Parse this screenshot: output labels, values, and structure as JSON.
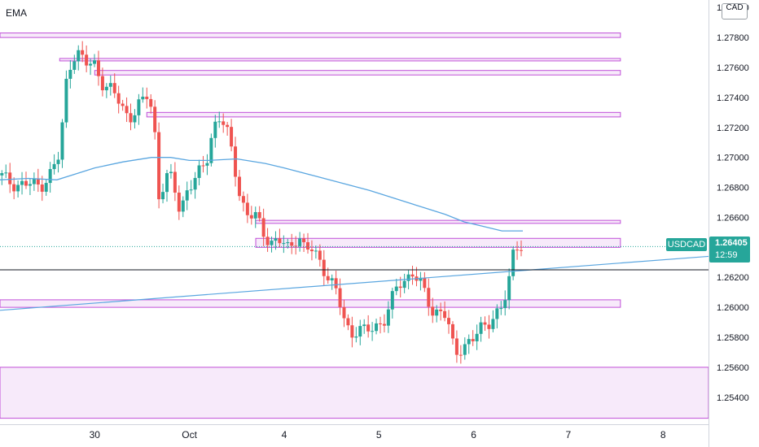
{
  "chart_data": {
    "type": "candlestick",
    "symbol": "USDCAD",
    "indicator": "EMA",
    "currency": "CAD",
    "last_price": "1.26405",
    "countdown": "12:59",
    "y_axis_ticks": [
      1.28,
      1.278,
      1.276,
      1.274,
      1.272,
      1.27,
      1.268,
      1.266,
      1.264,
      1.262,
      1.26,
      1.258,
      1.256,
      1.254
    ],
    "y_axis_tick_labels": [
      "1.28000",
      "1.27800",
      "1.27600",
      "1.27400",
      "1.27200",
      "1.27000",
      "1.26800",
      "1.26600",
      "1.26400",
      "1.26200",
      "1.26000",
      "1.25800",
      "1.25600",
      "1.25400"
    ],
    "ylim": [
      1.2522,
      1.2805
    ],
    "x_axis_labels": [
      "30",
      "Oct",
      "4",
      "5",
      "6",
      "7",
      "8"
    ],
    "x_axis_label_positions": [
      1.0,
      2.0,
      3.0,
      4.0,
      5.0,
      6.0,
      7.0
    ],
    "xlim": [
      0.0,
      7.48
    ],
    "ohlc_anchors": [
      [
        0.0,
        1.2688
      ],
      [
        0.08,
        1.2684
      ],
      [
        0.2,
        1.2682
      ],
      [
        0.3,
        1.2682
      ],
      [
        0.42,
        1.2681
      ],
      [
        0.52,
        1.2688
      ],
      [
        0.62,
        1.27
      ],
      [
        0.66,
        1.2722
      ],
      [
        0.7,
        1.275
      ],
      [
        0.76,
        1.2768
      ],
      [
        0.82,
        1.277
      ],
      [
        0.9,
        1.2762
      ],
      [
        1.0,
        1.2762
      ],
      [
        1.1,
        1.2748
      ],
      [
        1.2,
        1.2743
      ],
      [
        1.32,
        1.273
      ],
      [
        1.4,
        1.2728
      ],
      [
        1.48,
        1.2735
      ],
      [
        1.55,
        1.2741
      ],
      [
        1.62,
        1.273
      ],
      [
        1.68,
        1.2673
      ],
      [
        1.75,
        1.2686
      ],
      [
        1.82,
        1.2685
      ],
      [
        1.9,
        1.2664
      ],
      [
        1.98,
        1.268
      ],
      [
        2.08,
        1.2686
      ],
      [
        2.18,
        1.2698
      ],
      [
        2.24,
        1.2717
      ],
      [
        2.3,
        1.2728
      ],
      [
        2.38,
        1.272
      ],
      [
        2.46,
        1.27
      ],
      [
        2.52,
        1.2679
      ],
      [
        2.6,
        1.2662
      ],
      [
        2.7,
        1.266
      ],
      [
        2.78,
        1.265
      ],
      [
        2.86,
        1.2644
      ],
      [
        2.96,
        1.2644
      ],
      [
        3.05,
        1.2638
      ],
      [
        3.15,
        1.265
      ],
      [
        3.22,
        1.2638
      ],
      [
        3.3,
        1.2638
      ],
      [
        3.4,
        1.2628
      ],
      [
        3.48,
        1.262
      ],
      [
        3.56,
        1.2608
      ],
      [
        3.63,
        1.2592
      ],
      [
        3.7,
        1.2582
      ],
      [
        3.78,
        1.2587
      ],
      [
        3.86,
        1.2583
      ],
      [
        3.95,
        1.2586
      ],
      [
        4.05,
        1.2592
      ],
      [
        4.12,
        1.2602
      ],
      [
        4.2,
        1.2614
      ],
      [
        4.28,
        1.2618
      ],
      [
        4.35,
        1.2625
      ],
      [
        4.42,
        1.2618
      ],
      [
        4.5,
        1.2606
      ],
      [
        4.58,
        1.2595
      ],
      [
        4.64,
        1.26
      ],
      [
        4.7,
        1.2596
      ],
      [
        4.76,
        1.258
      ],
      [
        4.8,
        1.2567
      ],
      [
        4.86,
        1.2572
      ],
      [
        4.94,
        1.2578
      ],
      [
        5.04,
        1.2582
      ],
      [
        5.14,
        1.2588
      ],
      [
        5.22,
        1.2596
      ],
      [
        5.3,
        1.2601
      ],
      [
        5.36,
        1.261
      ],
      [
        5.42,
        1.2636
      ],
      [
        5.48,
        1.2645
      ],
      [
        5.52,
        1.264
      ]
    ],
    "series": [
      {
        "name": "EMA",
        "color": "#5aa6e0",
        "x": [
          0.0,
          0.3,
          0.6,
          0.8,
          1.0,
          1.3,
          1.6,
          1.8,
          2.0,
          2.2,
          2.5,
          2.8,
          3.0,
          3.3,
          3.6,
          3.9,
          4.1,
          4.3,
          4.5,
          4.7,
          4.9,
          5.1,
          5.3,
          5.52
        ],
        "y": [
          1.2685,
          1.2686,
          1.2685,
          1.2689,
          1.2693,
          1.2697,
          1.27,
          1.27,
          1.2698,
          1.2698,
          1.2699,
          1.2696,
          1.2693,
          1.2688,
          1.2683,
          1.2678,
          1.2674,
          1.267,
          1.2666,
          1.2662,
          1.2657,
          1.2654,
          1.2651,
          1.2651
        ]
      }
    ],
    "trendline": {
      "color": "#5aa6e0",
      "from": [
        0.0,
        1.2598
      ],
      "to": [
        7.48,
        1.2634
      ]
    },
    "horizontal_line": {
      "color": "#131722",
      "y": 1.2625
    },
    "last_price_line": {
      "color": "#26a69a",
      "y": 1.26405
    },
    "zones": [
      {
        "y_top": 1.2783,
        "y_bottom": 1.278,
        "x_from": 0.0,
        "x_to": 6.55
      },
      {
        "y_top": 1.2766,
        "y_bottom": 1.2766,
        "x_from": 0.63,
        "x_to": 6.55
      },
      {
        "y_top": 1.2758,
        "y_bottom": 1.2755,
        "x_from": 1.0,
        "x_to": 6.55
      },
      {
        "y_top": 1.273,
        "y_bottom": 1.2727,
        "x_from": 1.55,
        "x_to": 6.55
      },
      {
        "y_top": 1.2658,
        "y_bottom": 1.2656,
        "x_from": 2.7,
        "x_to": 6.55
      },
      {
        "y_top": 1.2646,
        "y_bottom": 1.264,
        "x_from": 2.7,
        "x_to": 6.55
      },
      {
        "y_top": 1.2605,
        "y_bottom": 1.26,
        "x_from": 0.0,
        "x_to": 6.55
      },
      {
        "y_top": 1.256,
        "y_bottom": 1.2526,
        "x_from": 0.0,
        "x_to": 7.48
      }
    ],
    "colors": {
      "up": "#26a69a",
      "down": "#ef5350",
      "zone_stroke": "#c04fd8",
      "zone_fill": "#f4e3f8",
      "axis_text": "#131722"
    },
    "grid": false
  }
}
